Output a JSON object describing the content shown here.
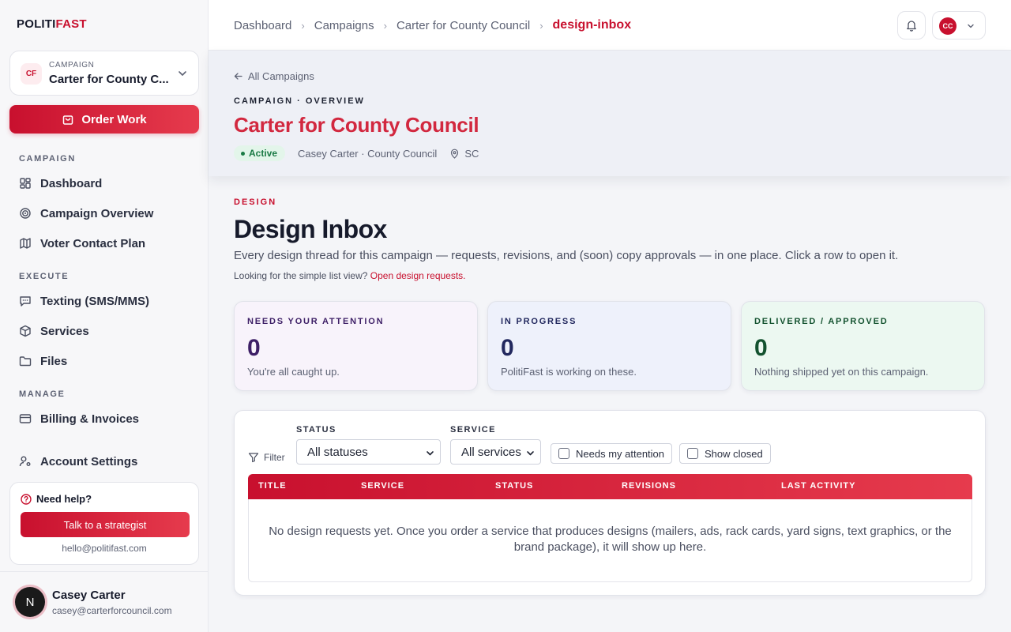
{
  "brand": {
    "part1": "POLITI",
    "part2": "FAST"
  },
  "campaign_selector": {
    "initials": "CF",
    "label": "CAMPAIGN",
    "name": "Carter for County C..."
  },
  "order_button": "Order Work",
  "nav": {
    "section_campaign": "CAMPAIGN",
    "dashboard": "Dashboard",
    "campaign_overview": "Campaign Overview",
    "voter_contact": "Voter Contact Plan",
    "section_execute": "EXECUTE",
    "texting": "Texting (SMS/MMS)",
    "services": "Services",
    "files": "Files",
    "section_manage": "MANAGE",
    "billing": "Billing & Invoices",
    "account": "Account Settings"
  },
  "help": {
    "title": "Need help?",
    "button": "Talk to a strategist",
    "email": "hello@politifast.com"
  },
  "user": {
    "initial": "N",
    "name": "Casey Carter",
    "email": "casey@carterforcouncil.com",
    "menu_initials": "CC"
  },
  "breadcrumbs": [
    "Dashboard",
    "Campaigns",
    "Carter for County Council",
    "design-inbox"
  ],
  "campaign_header": {
    "back": "All Campaigns",
    "eyebrow": "CAMPAIGN · OVERVIEW",
    "title": "Carter for County Council",
    "status": "Active",
    "candidate": "Casey Carter · County Council",
    "location": "SC"
  },
  "page": {
    "eyebrow": "DESIGN",
    "title": "Design Inbox",
    "description": "Every design thread for this campaign — requests, revisions, and (soon) copy approvals — in one place. Click a row to open it.",
    "sub_prefix": "Looking for the simple list view?",
    "sub_link": "Open design requests."
  },
  "stats": [
    {
      "label": "NEEDS YOUR ATTENTION",
      "value": "0",
      "note": "You're all caught up."
    },
    {
      "label": "IN PROGRESS",
      "value": "0",
      "note": "PolitiFast is working on these."
    },
    {
      "label": "DELIVERED / APPROVED",
      "value": "0",
      "note": "Nothing shipped yet on this campaign."
    }
  ],
  "filters": {
    "filter_label": "Filter",
    "status_label": "STATUS",
    "status_value": "All statuses",
    "service_label": "SERVICE",
    "service_value": "All services",
    "attention_label": "Needs my attention",
    "closed_label": "Show closed"
  },
  "table": {
    "columns": [
      "TITLE",
      "SERVICE",
      "STATUS",
      "REVISIONS",
      "LAST ACTIVITY"
    ],
    "empty_message": "No design requests yet. Once you order a service that produces designs (mailers, ads, rack cards, yard signs, text graphics, or the brand package), it will show up here."
  },
  "colors": {
    "accent": "#c8102e",
    "accent_light": "#e63b4d",
    "active_green": "#1b7a45"
  }
}
